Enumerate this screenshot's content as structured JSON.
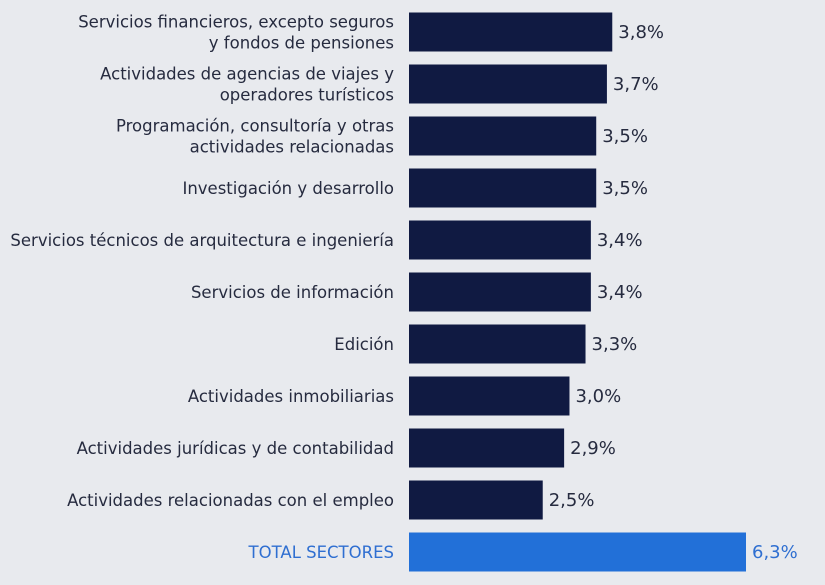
{
  "chart_data": {
    "type": "bar",
    "orientation": "horizontal",
    "categories": [
      [
        "Servicios financieros, excepto seguros",
        "y fondos de pensiones"
      ],
      [
        "Actividades de agencias de viajes y",
        "operadores turísticos"
      ],
      [
        "Programación, consultoría y otras",
        "actividades relacionadas"
      ],
      [
        "Investigación y desarrollo"
      ],
      [
        "Servicios técnicos de arquitectura e ingeniería"
      ],
      [
        "Servicios de información"
      ],
      [
        "Edición"
      ],
      [
        "Actividades inmobiliarias"
      ],
      [
        "Actividades jurídicas y de contabilidad"
      ],
      [
        "Actividades relacionadas con el empleo"
      ],
      [
        "TOTAL SECTORES"
      ]
    ],
    "values": [
      3.8,
      3.7,
      3.5,
      3.5,
      3.4,
      3.4,
      3.3,
      3.0,
      2.9,
      2.5,
      6.3
    ],
    "value_labels": [
      "3,8%",
      "3,7%",
      "3,5%",
      "3,5%",
      "3,4%",
      "3,4%",
      "3,3%",
      "3,0%",
      "2,9%",
      "2,5%",
      "6,3%"
    ],
    "highlight_index": 10,
    "xlim": [
      0,
      6.3
    ],
    "grid": false,
    "legend": "none",
    "colors": {
      "bar": "#101a42",
      "highlight_bar": "#2270d8",
      "label": "#262b3f",
      "highlight_label": "#2f6fd1",
      "background": "#e8eaee"
    }
  }
}
